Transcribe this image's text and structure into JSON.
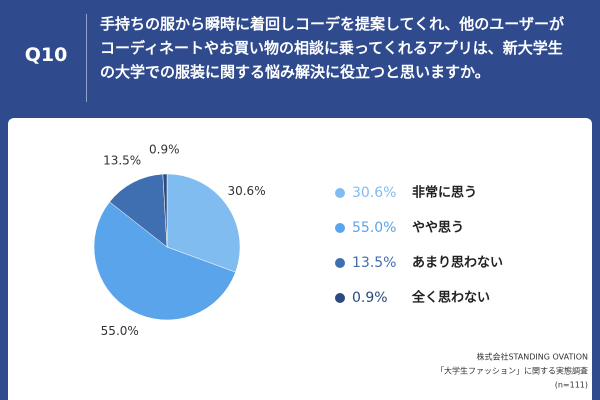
{
  "question_number": "Q10",
  "chart_data": {
    "type": "pie",
    "title": "手持ちの服から瞬時に着回しコーデを提案してくれ、他のユーザーがコーディネートやお買い物の相談に乗ってくれるアプリは、新大学生の大学での服装に関する悩み解決に役立つと思いますか。",
    "categories": [
      "非常に思う",
      "やや思う",
      "あまり思わない",
      "全く思わない"
    ],
    "values": [
      30.6,
      55.0,
      13.5,
      0.9
    ],
    "value_labels": [
      "30.6%",
      "55.0%",
      "13.5%",
      "0.9%"
    ],
    "colors": [
      "#80bcf0",
      "#5aa4ec",
      "#3f6fb1",
      "#2a4a80"
    ]
  },
  "source": [
    "株式会社STANDING OVATION",
    "「大学生ファッション」に関する実態調査",
    "(n=111)"
  ]
}
